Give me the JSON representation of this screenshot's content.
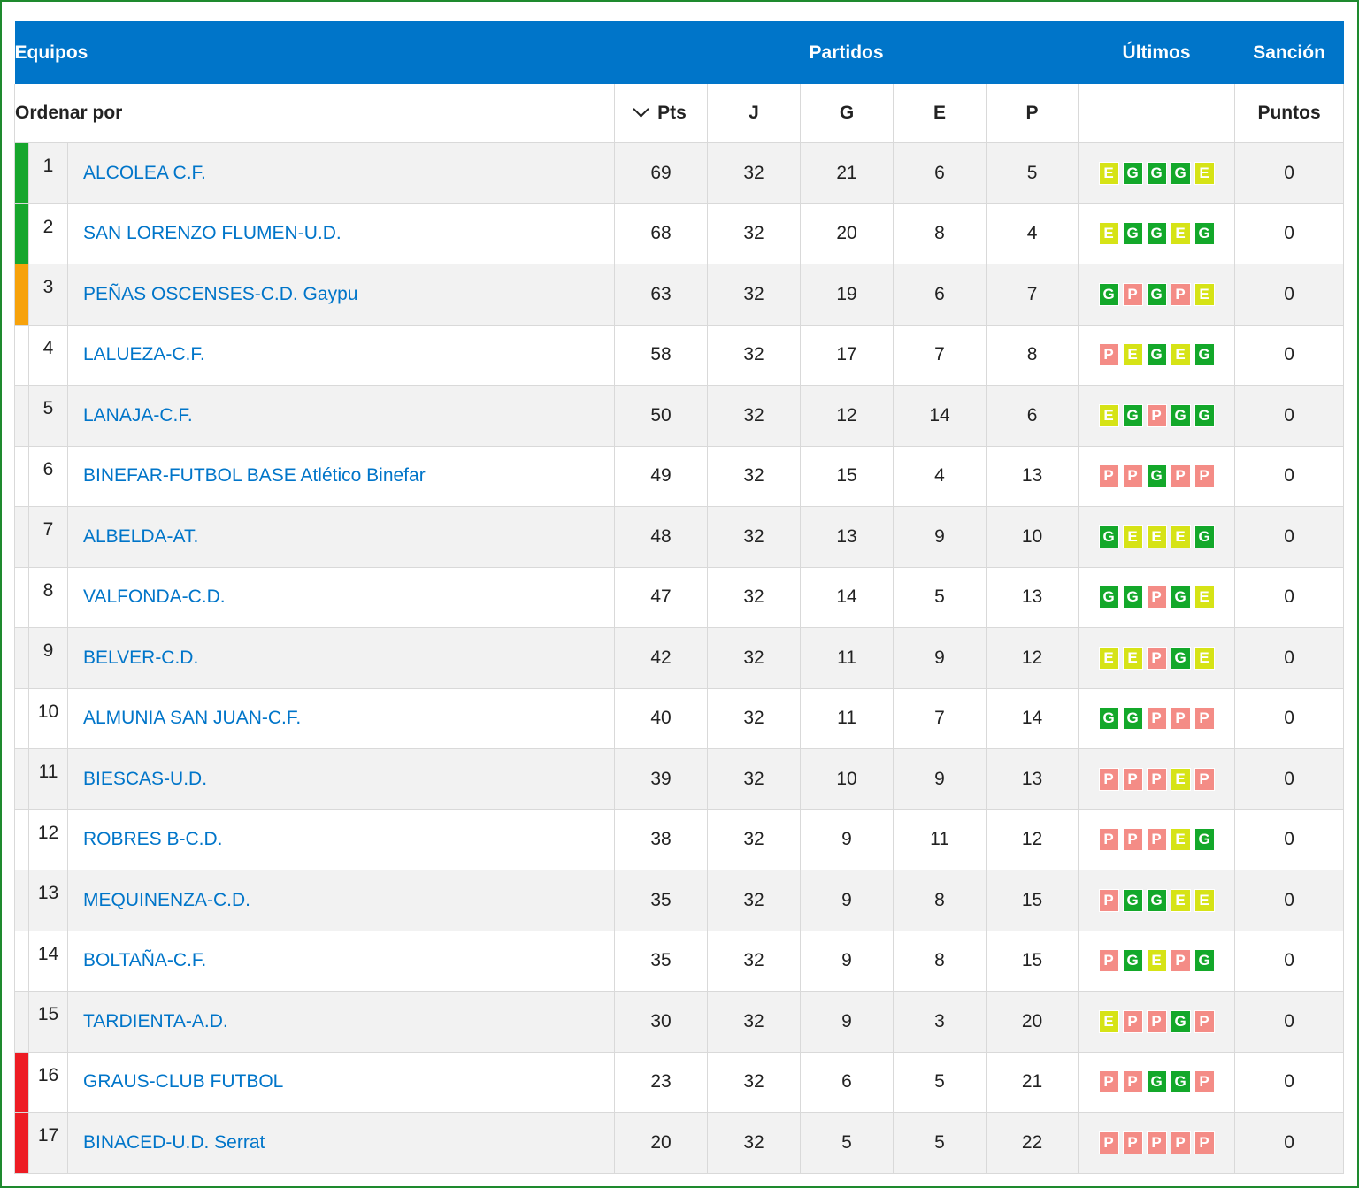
{
  "header": {
    "equipos": "Equipos",
    "partidos": "Partidos",
    "ultimos": "Últimos",
    "sancion": "Sanción"
  },
  "subheader": {
    "ordenar": "Ordenar por",
    "pts": "Pts",
    "j": "J",
    "g": "G",
    "e": "E",
    "p": "P",
    "puntos": "Puntos"
  },
  "colors": {
    "header_bg": "#0075c9",
    "link": "#0075c9",
    "zone_green": "#17a62d",
    "zone_orange": "#f7a20b",
    "zone_red": "#ed1c24",
    "result_G": "#13a82a",
    "result_E": "#d6e316",
    "result_P": "#f48c86"
  },
  "icons": {
    "sort": "chevron-down-icon"
  },
  "rows": [
    {
      "pos": "1",
      "team": "ALCOLEA C.F.",
      "pts": "69",
      "j": "32",
      "g": "21",
      "e": "6",
      "p": "5",
      "last": [
        "E",
        "G",
        "G",
        "G",
        "E"
      ],
      "sancion": "0",
      "zone": "green"
    },
    {
      "pos": "2",
      "team": "SAN LORENZO FLUMEN-U.D.",
      "pts": "68",
      "j": "32",
      "g": "20",
      "e": "8",
      "p": "4",
      "last": [
        "E",
        "G",
        "G",
        "E",
        "G"
      ],
      "sancion": "0",
      "zone": "green"
    },
    {
      "pos": "3",
      "team": "PEÑAS OSCENSES-C.D. Gaypu",
      "pts": "63",
      "j": "32",
      "g": "19",
      "e": "6",
      "p": "7",
      "last": [
        "G",
        "P",
        "G",
        "P",
        "E"
      ],
      "sancion": "0",
      "zone": "orange"
    },
    {
      "pos": "4",
      "team": "LALUEZA-C.F.",
      "pts": "58",
      "j": "32",
      "g": "17",
      "e": "7",
      "p": "8",
      "last": [
        "P",
        "E",
        "G",
        "E",
        "G"
      ],
      "sancion": "0",
      "zone": ""
    },
    {
      "pos": "5",
      "team": "LANAJA-C.F.",
      "pts": "50",
      "j": "32",
      "g": "12",
      "e": "14",
      "p": "6",
      "last": [
        "E",
        "G",
        "P",
        "G",
        "G"
      ],
      "sancion": "0",
      "zone": ""
    },
    {
      "pos": "6",
      "team": "BINEFAR-FUTBOL BASE Atlético Binefar",
      "pts": "49",
      "j": "32",
      "g": "15",
      "e": "4",
      "p": "13",
      "last": [
        "P",
        "P",
        "G",
        "P",
        "P"
      ],
      "sancion": "0",
      "zone": ""
    },
    {
      "pos": "7",
      "team": "ALBELDA-AT.",
      "pts": "48",
      "j": "32",
      "g": "13",
      "e": "9",
      "p": "10",
      "last": [
        "G",
        "E",
        "E",
        "E",
        "G"
      ],
      "sancion": "0",
      "zone": ""
    },
    {
      "pos": "8",
      "team": "VALFONDA-C.D.",
      "pts": "47",
      "j": "32",
      "g": "14",
      "e": "5",
      "p": "13",
      "last": [
        "G",
        "G",
        "P",
        "G",
        "E"
      ],
      "sancion": "0",
      "zone": ""
    },
    {
      "pos": "9",
      "team": "BELVER-C.D.",
      "pts": "42",
      "j": "32",
      "g": "11",
      "e": "9",
      "p": "12",
      "last": [
        "E",
        "E",
        "P",
        "G",
        "E"
      ],
      "sancion": "0",
      "zone": ""
    },
    {
      "pos": "10",
      "team": "ALMUNIA SAN JUAN-C.F.",
      "pts": "40",
      "j": "32",
      "g": "11",
      "e": "7",
      "p": "14",
      "last": [
        "G",
        "G",
        "P",
        "P",
        "P"
      ],
      "sancion": "0",
      "zone": ""
    },
    {
      "pos": "11",
      "team": "BIESCAS-U.D.",
      "pts": "39",
      "j": "32",
      "g": "10",
      "e": "9",
      "p": "13",
      "last": [
        "P",
        "P",
        "P",
        "E",
        "P"
      ],
      "sancion": "0",
      "zone": ""
    },
    {
      "pos": "12",
      "team": "ROBRES B-C.D.",
      "pts": "38",
      "j": "32",
      "g": "9",
      "e": "11",
      "p": "12",
      "last": [
        "P",
        "P",
        "P",
        "E",
        "G"
      ],
      "sancion": "0",
      "zone": ""
    },
    {
      "pos": "13",
      "team": "MEQUINENZA-C.D.",
      "pts": "35",
      "j": "32",
      "g": "9",
      "e": "8",
      "p": "15",
      "last": [
        "P",
        "G",
        "G",
        "E",
        "E"
      ],
      "sancion": "0",
      "zone": ""
    },
    {
      "pos": "14",
      "team": "BOLTAÑA-C.F.",
      "pts": "35",
      "j": "32",
      "g": "9",
      "e": "8",
      "p": "15",
      "last": [
        "P",
        "G",
        "E",
        "P",
        "G"
      ],
      "sancion": "0",
      "zone": ""
    },
    {
      "pos": "15",
      "team": "TARDIENTA-A.D.",
      "pts": "30",
      "j": "32",
      "g": "9",
      "e": "3",
      "p": "20",
      "last": [
        "E",
        "P",
        "P",
        "G",
        "P"
      ],
      "sancion": "0",
      "zone": ""
    },
    {
      "pos": "16",
      "team": "GRAUS-CLUB FUTBOL",
      "pts": "23",
      "j": "32",
      "g": "6",
      "e": "5",
      "p": "21",
      "last": [
        "P",
        "P",
        "G",
        "G",
        "P"
      ],
      "sancion": "0",
      "zone": "red"
    },
    {
      "pos": "17",
      "team": "BINACED-U.D. Serrat",
      "pts": "20",
      "j": "32",
      "g": "5",
      "e": "5",
      "p": "22",
      "last": [
        "P",
        "P",
        "P",
        "P",
        "P"
      ],
      "sancion": "0",
      "zone": "red"
    }
  ]
}
